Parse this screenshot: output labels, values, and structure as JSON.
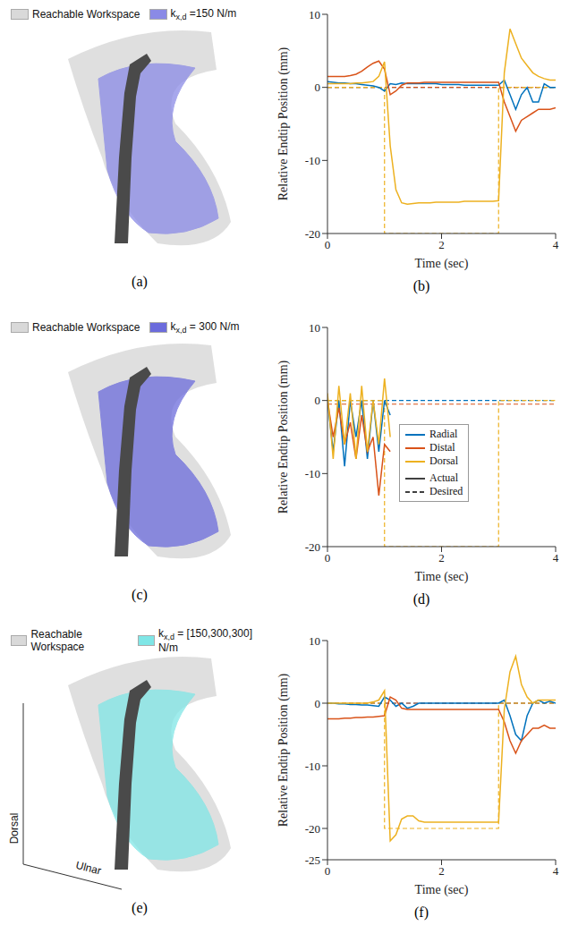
{
  "workspaces": [
    {
      "label": "(a)",
      "legend": [
        {
          "text": "Reachable Workspace",
          "color": "#d9d9d9"
        },
        {
          "symbol": "k",
          "subscript": "x,d",
          "text": " =150 N/m",
          "color": "#8a8ae6"
        }
      ]
    },
    {
      "label": "(c)",
      "legend": [
        {
          "text": "Reachable Workspace",
          "color": "#d9d9d9"
        },
        {
          "symbol": "k",
          "subscript": "x,d",
          "text": " = 300 N/m",
          "color": "#6b6bdc"
        }
      ]
    },
    {
      "label": "(e)",
      "legend": [
        {
          "text": "Reachable Workspace",
          "color": "#d9d9d9"
        },
        {
          "symbol": "k",
          "subscript": "x,d",
          "text": " = [150,300,300] N/m",
          "color": "#7fe6e6"
        }
      ],
      "axes": [
        "Dorsal",
        "Ulnar"
      ]
    }
  ],
  "chart_data": [
    {
      "type": "line",
      "label": "(b)",
      "xlabel": "Time (sec)",
      "ylabel": "Relative Endtip Position (mm)",
      "xlim": [
        0,
        4
      ],
      "xticks": [
        0,
        2,
        4
      ],
      "ylim": [
        -20,
        10
      ],
      "yticks": [
        -20,
        -10,
        0,
        10
      ],
      "x": [
        0,
        0.1,
        0.2,
        0.3,
        0.4,
        0.5,
        0.6,
        0.7,
        0.8,
        0.9,
        1,
        1,
        1.1,
        1.2,
        1.3,
        1.4,
        1.5,
        1.6,
        1.7,
        1.8,
        1.9,
        2,
        2.1,
        2.2,
        2.3,
        2.4,
        2.5,
        2.6,
        2.7,
        2.8,
        2.9,
        3,
        3,
        3.1,
        3.2,
        3.3,
        3.4,
        3.5,
        3.6,
        3.7,
        3.8,
        3.9,
        4
      ],
      "series": [
        {
          "name": "Radial",
          "color": "#0072bd",
          "values": [
            0.8,
            0.7,
            0.6,
            0.6,
            0.5,
            0.5,
            0.4,
            0.3,
            0.2,
            0,
            -0.5,
            -0.5,
            0.5,
            0.4,
            0.6,
            0.5,
            0.5,
            0.5,
            0.5,
            0.5,
            0.5,
            0.4,
            0.4,
            0.4,
            0.4,
            0.3,
            0.3,
            0.3,
            0.3,
            0.3,
            0.3,
            0.3,
            0.3,
            1,
            -1,
            -3,
            -1,
            0,
            -2,
            -2,
            0.5,
            0,
            0
          ],
          "desired": [
            0,
            0,
            0,
            0,
            0,
            0,
            0,
            0,
            0,
            0,
            0,
            0,
            0,
            0,
            0,
            0,
            0,
            0,
            0,
            0,
            0,
            0,
            0,
            0,
            0,
            0,
            0,
            0,
            0,
            0,
            0,
            0,
            0,
            0,
            0,
            0,
            0,
            0,
            0,
            0,
            0,
            0,
            0
          ]
        },
        {
          "name": "Distal",
          "color": "#d95319",
          "values": [
            1.5,
            1.5,
            1.5,
            1.5,
            1.6,
            1.8,
            2.2,
            2.8,
            3.3,
            3.6,
            2.5,
            2.5,
            -1,
            -0.5,
            0.3,
            0.6,
            0.6,
            0.6,
            0.7,
            0.7,
            0.7,
            0.7,
            0.7,
            0.7,
            0.7,
            0.7,
            0.7,
            0.7,
            0.7,
            0.7,
            0.7,
            0.7,
            0.7,
            -2,
            -4,
            -6,
            -4.5,
            -4,
            -3.5,
            -3,
            -3,
            -3,
            -2.8
          ],
          "desired": [
            0,
            0,
            0,
            0,
            0,
            0,
            0,
            0,
            0,
            0,
            0,
            0,
            0,
            0,
            0,
            0,
            0,
            0,
            0,
            0,
            0,
            0,
            0,
            0,
            0,
            0,
            0,
            0,
            0,
            0,
            0,
            0,
            0,
            0,
            0,
            0,
            0,
            0,
            0,
            0,
            0,
            0,
            0
          ]
        },
        {
          "name": "Dorsal",
          "color": "#edb120",
          "values": [
            0.5,
            0.5,
            0.5,
            0.5,
            0.5,
            0.6,
            0.6,
            0.7,
            0.8,
            1.5,
            3.5,
            3.5,
            -8,
            -14,
            -15.8,
            -16,
            -15.9,
            -15.8,
            -15.8,
            -15.8,
            -15.7,
            -15.7,
            -15.7,
            -15.7,
            -15.7,
            -15.6,
            -15.6,
            -15.6,
            -15.6,
            -15.6,
            -15.6,
            -15.5,
            -15.5,
            2,
            8,
            6,
            4,
            3,
            2,
            1.5,
            1.2,
            1,
            1
          ],
          "desired": [
            0,
            0,
            0,
            0,
            0,
            0,
            0,
            0,
            0,
            0,
            0,
            -20,
            -20,
            -20,
            -20,
            -20,
            -20,
            -20,
            -20,
            -20,
            -20,
            -20,
            -20,
            -20,
            -20,
            -20,
            -20,
            -20,
            -20,
            -20,
            -20,
            -20,
            0,
            0,
            0,
            0,
            0,
            0,
            0,
            0,
            0,
            0,
            0
          ]
        }
      ]
    },
    {
      "type": "line",
      "label": "(d)",
      "xlabel": "Time (sec)",
      "ylabel": "Relative Endtip Position (mm)",
      "xlim": [
        0,
        4
      ],
      "xticks": [
        0,
        2,
        4
      ],
      "ylim": [
        -20,
        10
      ],
      "yticks": [
        -20,
        -10,
        0,
        10
      ],
      "legend": "lower center",
      "line_styles": [
        {
          "name": "Actual",
          "line_style": "solid"
        },
        {
          "name": "Desired",
          "line_style": "dashed"
        }
      ],
      "x": [
        0,
        0.1,
        0.2,
        0.3,
        0.4,
        0.5,
        0.6,
        0.7,
        0.8,
        0.9,
        1,
        1,
        1.1,
        1.2,
        1.3,
        1.4,
        1.5,
        1.6,
        1.7,
        1.8,
        1.9,
        2,
        2.1,
        2.2,
        2.3,
        2.4,
        2.5,
        2.6,
        2.7,
        2.8,
        2.9,
        3,
        3,
        3.1,
        3.2,
        3.3,
        3.4,
        3.5,
        3.6,
        3.7,
        3.8,
        3.9,
        4
      ],
      "series": [
        {
          "name": "Radial",
          "color": "#0072bd",
          "values": [
            0,
            -7,
            0,
            -9,
            0,
            -5,
            0,
            -8,
            0,
            -7,
            0,
            0,
            -2,
            null,
            null,
            null,
            null,
            null,
            null,
            null,
            null,
            null,
            null,
            null,
            null,
            null,
            null,
            null,
            null,
            null,
            null,
            null,
            null,
            null,
            null,
            null,
            null,
            null,
            null,
            null,
            null,
            null,
            null
          ],
          "desired": [
            0,
            0,
            0,
            0,
            0,
            0,
            0,
            0,
            0,
            0,
            0,
            0,
            0,
            0,
            0,
            0,
            0,
            0,
            0,
            0,
            0,
            0,
            0,
            0,
            0,
            0,
            0,
            0,
            0,
            0,
            0,
            0,
            0,
            0,
            0,
            0,
            0,
            0,
            0,
            0,
            0,
            0,
            0
          ]
        },
        {
          "name": "Distal",
          "color": "#d95319",
          "values": [
            0,
            -5,
            -1,
            -6,
            -3,
            -8,
            -2,
            -7,
            -5,
            -13,
            -6,
            -6,
            -7,
            null,
            null,
            null,
            null,
            null,
            null,
            null,
            null,
            null,
            null,
            null,
            null,
            null,
            null,
            null,
            null,
            null,
            null,
            null,
            null,
            null,
            null,
            null,
            null,
            null,
            null,
            null,
            null,
            null,
            null
          ],
          "desired": [
            -0.5,
            -0.5,
            -0.5,
            -0.5,
            -0.5,
            -0.5,
            -0.5,
            -0.5,
            -0.5,
            -0.5,
            -0.5,
            -0.5,
            -0.5,
            -0.5,
            -0.5,
            -0.5,
            -0.5,
            -0.5,
            -0.5,
            -0.5,
            -0.5,
            -0.5,
            -0.5,
            -0.5,
            -0.5,
            -0.5,
            -0.5,
            -0.5,
            -0.5,
            -0.5,
            -0.5,
            -0.5,
            -0.5,
            -0.5,
            -0.5,
            -0.5,
            -0.5,
            -0.5,
            -0.5,
            -0.5,
            -0.5,
            -0.5,
            -0.5
          ]
        },
        {
          "name": "Dorsal",
          "color": "#edb120",
          "values": [
            1,
            -8,
            2,
            -6,
            1,
            -8,
            2,
            -7,
            0,
            -6,
            3,
            3,
            -5,
            null,
            null,
            null,
            null,
            null,
            null,
            null,
            null,
            null,
            null,
            null,
            null,
            null,
            null,
            null,
            null,
            null,
            null,
            null,
            null,
            null,
            null,
            null,
            null,
            null,
            null,
            null,
            null,
            null,
            null
          ],
          "desired": [
            0,
            0,
            0,
            0,
            0,
            0,
            0,
            0,
            0,
            0,
            0,
            -20,
            -20,
            -20,
            -20,
            -20,
            -20,
            -20,
            -20,
            -20,
            -20,
            -20,
            -20,
            -20,
            -20,
            -20,
            -20,
            -20,
            -20,
            -20,
            -20,
            -20,
            0,
            0,
            0,
            0,
            0,
            0,
            0,
            0,
            0,
            0,
            0
          ]
        }
      ]
    },
    {
      "type": "line",
      "label": "(f)",
      "xlabel": "Time (sec)",
      "ylabel": "Relative Endtip Position (mm)",
      "xlim": [
        0,
        4
      ],
      "xticks": [
        0,
        2,
        4
      ],
      "ylim": [
        -25,
        10
      ],
      "yticks": [
        -25,
        -20,
        -10,
        0,
        10
      ],
      "x": [
        0,
        0.1,
        0.2,
        0.3,
        0.4,
        0.5,
        0.6,
        0.7,
        0.8,
        0.9,
        1,
        1,
        1.1,
        1.2,
        1.3,
        1.4,
        1.5,
        1.6,
        1.7,
        1.8,
        1.9,
        2,
        2.1,
        2.2,
        2.3,
        2.4,
        2.5,
        2.6,
        2.7,
        2.8,
        2.9,
        3,
        3,
        3.1,
        3.2,
        3.3,
        3.4,
        3.5,
        3.6,
        3.7,
        3.8,
        3.9,
        4
      ],
      "series": [
        {
          "name": "Radial",
          "color": "#0072bd",
          "values": [
            0,
            0,
            -0.1,
            -0.1,
            -0.2,
            -0.2,
            -0.3,
            -0.3,
            -0.4,
            -0.5,
            1,
            1,
            0.5,
            -0.5,
            0,
            -0.8,
            -0.5,
            0,
            0,
            0,
            0,
            0,
            0,
            0,
            0,
            0,
            0,
            0,
            0,
            0,
            0,
            0,
            0,
            0.5,
            -2,
            -5,
            -6,
            -2,
            0,
            0.5,
            0,
            0.3,
            0
          ],
          "desired": [
            0,
            0,
            0,
            0,
            0,
            0,
            0,
            0,
            0,
            0,
            0,
            0,
            0,
            0,
            0,
            0,
            0,
            0,
            0,
            0,
            0,
            0,
            0,
            0,
            0,
            0,
            0,
            0,
            0,
            0,
            0,
            0,
            0,
            0,
            0,
            0,
            0,
            0,
            0,
            0,
            0,
            0,
            0
          ]
        },
        {
          "name": "Distal",
          "color": "#d95319",
          "values": [
            -2.5,
            -2.5,
            -2.5,
            -2.4,
            -2.4,
            -2.3,
            -2.3,
            -2.2,
            -2.2,
            -2.1,
            -2,
            -2,
            1,
            0.5,
            -0.8,
            -1,
            -1,
            -1,
            -1,
            -1,
            -1,
            -1,
            -1,
            -1,
            -1,
            -1,
            -1,
            -1,
            -1,
            -1,
            -1,
            -1,
            -1,
            -3,
            -6,
            -8,
            -6,
            -5,
            -4,
            -4,
            -3.5,
            -4,
            -4
          ],
          "desired": [
            0,
            0,
            0,
            0,
            0,
            0,
            0,
            0,
            0,
            0,
            0,
            0,
            0,
            0,
            0,
            0,
            0,
            0,
            0,
            0,
            0,
            0,
            0,
            0,
            0,
            0,
            0,
            0,
            0,
            0,
            0,
            0,
            0,
            0,
            0,
            0,
            0,
            0,
            0,
            0,
            0,
            0,
            0
          ]
        },
        {
          "name": "Dorsal",
          "color": "#edb120",
          "values": [
            0,
            0,
            0,
            0,
            0,
            0,
            0,
            0,
            0.2,
            0.5,
            2,
            2,
            -22,
            -21,
            -18.5,
            -18,
            -18,
            -18.8,
            -19,
            -19,
            -19,
            -19,
            -19,
            -19,
            -19,
            -19,
            -19,
            -19,
            -19,
            -19,
            -19,
            -19,
            -19,
            -1,
            5,
            7.5,
            3,
            1,
            0,
            0.5,
            0.5,
            0.5,
            0.5
          ],
          "desired": [
            0,
            0,
            0,
            0,
            0,
            0,
            0,
            0,
            0,
            0,
            0,
            -20,
            -20,
            -20,
            -20,
            -20,
            -20,
            -20,
            -20,
            -20,
            -20,
            -20,
            -20,
            -20,
            -20,
            -20,
            -20,
            -20,
            -20,
            -20,
            -20,
            -20,
            0,
            0,
            0,
            0,
            0,
            0,
            0,
            0,
            0,
            0,
            0
          ]
        }
      ]
    }
  ]
}
